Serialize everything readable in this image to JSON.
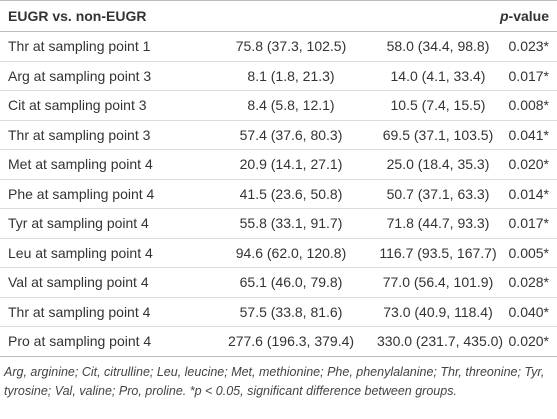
{
  "table": {
    "header": [
      "EUGR vs. non-EUGR",
      "p-value"
    ],
    "rows": [
      [
        "Thr at sampling point 1",
        "75.8 (37.3, 102.5)",
        "58.0 (34.4, 98.8)",
        "0.023*"
      ],
      [
        "Arg at sampling point 3",
        "8.1 (1.8, 21.3)",
        "14.0 (4.1, 33.4)",
        "0.017*"
      ],
      [
        "Cit at sampling point 3",
        "8.4 (5.8, 12.1)",
        "10.5 (7.4, 15.5)",
        "0.008*"
      ],
      [
        "Thr at sampling point 3",
        "57.4 (37.6, 80.3)",
        "69.5 (37.1, 103.5)",
        "0.041*"
      ],
      [
        "Met at sampling point 4",
        "20.9 (14.1, 27.1)",
        "25.0 (18.4, 35.3)",
        "0.020*"
      ],
      [
        "Phe at sampling point 4",
        "41.5 (23.6, 50.8)",
        "50.7 (37.1, 63.3)",
        "0.014*"
      ],
      [
        "Tyr at sampling point 4",
        "55.8 (33.1, 91.7)",
        "71.8 (44.7, 93.3)",
        "0.017*"
      ],
      [
        "Leu at sampling point 4",
        "94.6 (62.0, 120.8)",
        "116.7 (93.5, 167.7)",
        "0.005*"
      ],
      [
        "Val at sampling point 4",
        "65.1 (46.0, 79.8)",
        "77.0 (56.4, 101.9)",
        "0.028*"
      ],
      [
        "Thr at sampling point 4",
        "57.5 (33.8, 81.6)",
        "73.0 (40.9, 118.4)",
        "0.040*"
      ],
      [
        "Pro at sampling point 4",
        "277.6 (196.3, 379.4)",
        "330.0 (231.7, 435.0)",
        "0.020*"
      ]
    ],
    "footnote": "Arg, arginine; Cit, citrulline; Leu, leucine; Met, methionine; Phe, phenylalanine; Thr, threonine; Tyr, tyrosine; Val, valine; Pro, proline. *p < 0.05, significant difference between groups."
  }
}
